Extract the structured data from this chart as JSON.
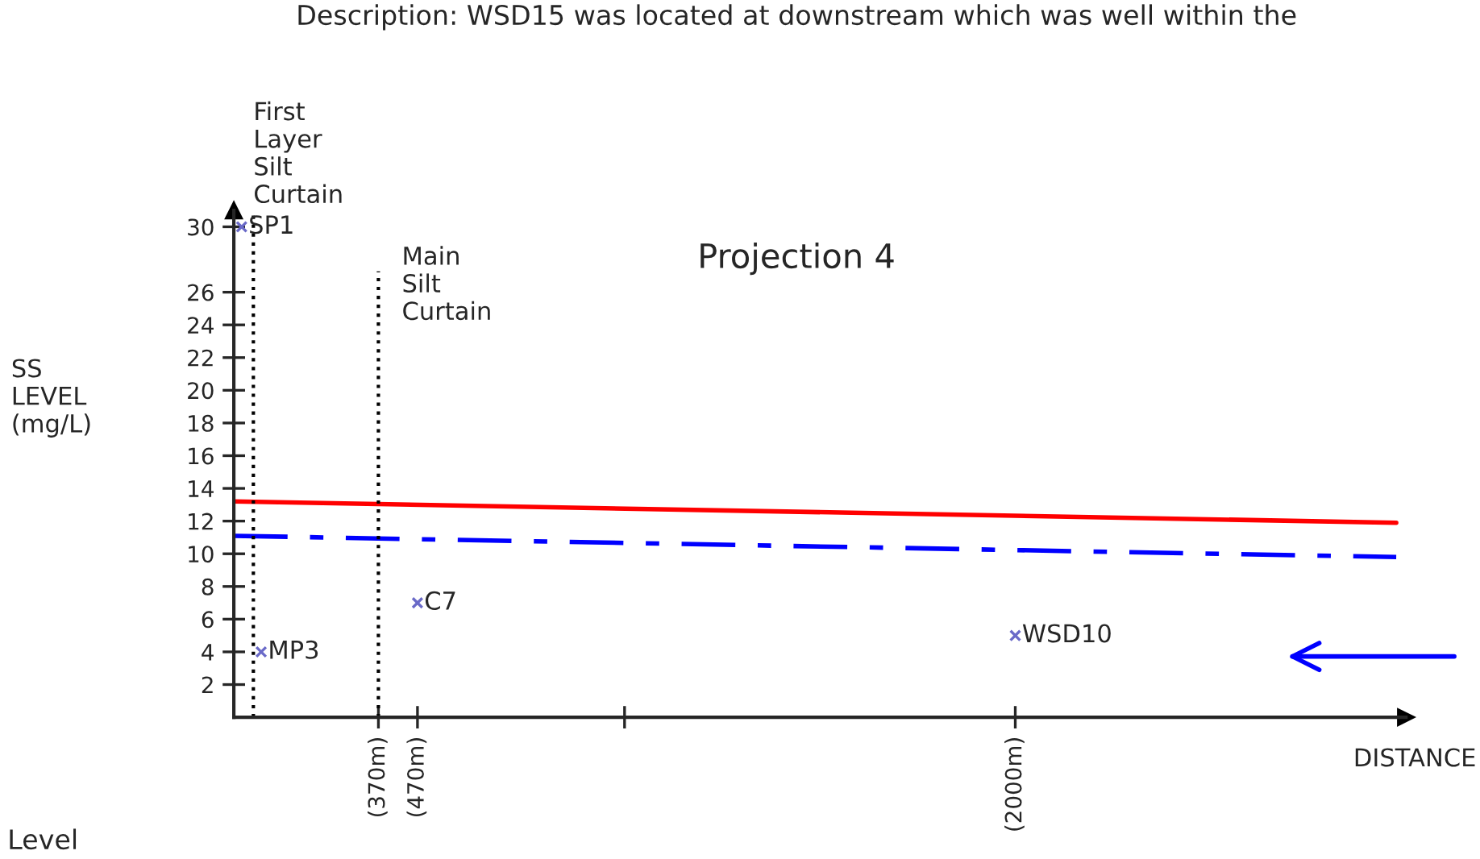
{
  "chart_data": {
    "type": "scatter",
    "title": "Projection 4",
    "xlabel": "DISTANCE",
    "ylabel": "SS\nLEVEL\n(mg/L)",
    "annotations": [
      "Description: WSD15 was located at downstream which was well within the",
      "Level"
    ],
    "xlim": [
      0,
      3000
    ],
    "xticks": [
      {
        "value": 370,
        "label": "(370m)"
      },
      {
        "value": 470,
        "label": "(470m)"
      },
      {
        "value": 1000,
        "label": null
      },
      {
        "value": 2000,
        "label": "(2000m)"
      }
    ],
    "ylim": [
      0,
      31
    ],
    "yticks": [
      2,
      4,
      6,
      8,
      10,
      12,
      14,
      16,
      18,
      20,
      22,
      24,
      26,
      30
    ],
    "grid": false,
    "legend": false,
    "series": [
      {
        "color": "#6a6ac8",
        "marker": "cross",
        "x": [
          20,
          70,
          470,
          2000
        ],
        "values": [
          30,
          4,
          7,
          5
        ],
        "value_labels": [
          "SP1",
          "MP3",
          "C7",
          "WSD10"
        ]
      },
      {
        "type": "line",
        "color": "#ff0000",
        "line_style": "solid",
        "marker": "none",
        "x": [
          0,
          2975
        ],
        "values": [
          13.2,
          11.9
        ]
      },
      {
        "type": "line",
        "color": "#0000ff",
        "line_style": "dashed",
        "marker": "none",
        "x": [
          0,
          2975
        ],
        "values": [
          11.1,
          9.8
        ]
      }
    ],
    "ref_lines": [
      {
        "axis": "x",
        "value": 50,
        "label": "First\nLayer\nSilt\nCurtain",
        "color": "#000000",
        "line_style": "dotted"
      },
      {
        "axis": "x",
        "value": 370,
        "label": "Main\nSilt\nCurtain",
        "color": "#000000",
        "line_style": "dotted"
      }
    ]
  }
}
